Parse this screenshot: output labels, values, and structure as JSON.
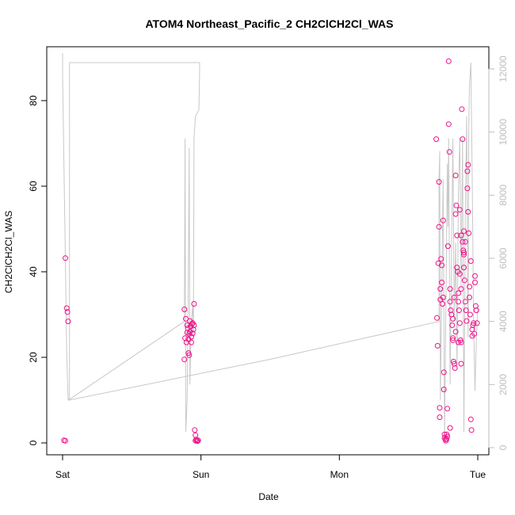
{
  "chart_data": {
    "type": "scatter",
    "title": "ATOM4 Northeast_Pacific_2 CH2ClCH2Cl_WAS",
    "xlabel": "Date",
    "ylabel": "CH2ClCH2Cl_WAS",
    "x_ticks": [
      "Sat",
      "Sun",
      "Mon",
      "Tue"
    ],
    "x_range_days": [
      0,
      3.06
    ],
    "ylim": [
      0,
      90
    ],
    "y_ticks": [
      0,
      20,
      40,
      60,
      80
    ],
    "y2lim": [
      0,
      12500
    ],
    "y2_ticks": [
      0,
      2000,
      4000,
      6000,
      8000,
      10000,
      12000
    ],
    "colors": {
      "points": "#ee1188",
      "secondary_line": "#c8c8c8",
      "axis": "#000000",
      "right_axis": "#bdbdbd"
    },
    "series": [
      {
        "points": [
          [
            0.02,
            43.2
          ],
          [
            0.03,
            31.5
          ],
          [
            0.035,
            30.6
          ],
          [
            0.04,
            28.4
          ],
          [
            0.01,
            0.6
          ],
          [
            0.02,
            0.5
          ],
          [
            0.88,
            31.2
          ],
          [
            0.89,
            29.0
          ],
          [
            0.885,
            24.5
          ],
          [
            0.88,
            19.5
          ],
          [
            0.895,
            23.5
          ],
          [
            0.9,
            27.5
          ],
          [
            0.9,
            25.8
          ],
          [
            0.905,
            26.8
          ],
          [
            0.91,
            24.2
          ],
          [
            0.91,
            21.0
          ],
          [
            0.915,
            20.5
          ],
          [
            0.915,
            25.5
          ],
          [
            0.92,
            28.5
          ],
          [
            0.92,
            26.0
          ],
          [
            0.925,
            27.2
          ],
          [
            0.93,
            24.8
          ],
          [
            0.93,
            23.5
          ],
          [
            0.935,
            27.8
          ],
          [
            0.94,
            25.6
          ],
          [
            0.94,
            28.0
          ],
          [
            0.945,
            26.5
          ],
          [
            0.95,
            27.5
          ],
          [
            0.95,
            32.5
          ],
          [
            0.955,
            3.0
          ],
          [
            0.96,
            1.8
          ],
          [
            0.965,
            0.8
          ],
          [
            0.97,
            0.5
          ],
          [
            0.975,
            0.4
          ],
          [
            0.98,
            0.6
          ],
          [
            0.96,
            0.5
          ],
          [
            2.7,
            71.0
          ],
          [
            2.705,
            29.2
          ],
          [
            2.71,
            22.7
          ],
          [
            2.715,
            42.0
          ],
          [
            2.72,
            61.0
          ],
          [
            2.72,
            50.5
          ],
          [
            2.725,
            8.2
          ],
          [
            2.725,
            6.0
          ],
          [
            2.73,
            36.0
          ],
          [
            2.73,
            33.5
          ],
          [
            2.735,
            43.0
          ],
          [
            2.74,
            41.5
          ],
          [
            2.74,
            37.5
          ],
          [
            2.745,
            32.5
          ],
          [
            2.75,
            34.0
          ],
          [
            2.75,
            52.0
          ],
          [
            2.755,
            16.5
          ],
          [
            2.755,
            12.5
          ],
          [
            2.76,
            2.0
          ],
          [
            2.76,
            1.2
          ],
          [
            2.765,
            0.8
          ],
          [
            2.77,
            0.5
          ],
          [
            2.775,
            0.9
          ],
          [
            2.78,
            1.5
          ],
          [
            2.78,
            8.0
          ],
          [
            2.785,
            46.0
          ],
          [
            2.79,
            89.2
          ],
          [
            2.79,
            74.5
          ],
          [
            2.795,
            68.0
          ],
          [
            2.8,
            36.0
          ],
          [
            2.8,
            33.0
          ],
          [
            2.805,
            31.0
          ],
          [
            2.81,
            30.0
          ],
          [
            2.815,
            27.5
          ],
          [
            2.82,
            29.0
          ],
          [
            2.82,
            24.5
          ],
          [
            2.825,
            19.0
          ],
          [
            2.83,
            18.5
          ],
          [
            2.835,
            17.5
          ],
          [
            2.84,
            53.5
          ],
          [
            2.84,
            62.5
          ],
          [
            2.845,
            55.5
          ],
          [
            2.85,
            48.5
          ],
          [
            2.85,
            41.0
          ],
          [
            2.855,
            40.0
          ],
          [
            2.86,
            35.0
          ],
          [
            2.86,
            33.0
          ],
          [
            2.865,
            31.0
          ],
          [
            2.87,
            28.0
          ],
          [
            2.875,
            24.0
          ],
          [
            2.88,
            23.5
          ],
          [
            2.88,
            18.5
          ],
          [
            2.885,
            78.0
          ],
          [
            2.89,
            71.0
          ],
          [
            2.89,
            47.0
          ],
          [
            2.895,
            45.0
          ],
          [
            2.9,
            44.0
          ],
          [
            2.9,
            41.0
          ],
          [
            2.905,
            38.0
          ],
          [
            2.91,
            33.0
          ],
          [
            2.915,
            31.0
          ],
          [
            2.92,
            28.5
          ],
          [
            2.925,
            59.5
          ],
          [
            2.925,
            63.5
          ],
          [
            2.93,
            65.0
          ],
          [
            2.93,
            54.0
          ],
          [
            2.935,
            49.0
          ],
          [
            2.94,
            36.5
          ],
          [
            2.94,
            34.0
          ],
          [
            2.945,
            30.0
          ],
          [
            2.95,
            42.5
          ],
          [
            2.95,
            5.5
          ],
          [
            2.955,
            3.0
          ],
          [
            2.96,
            25.0
          ],
          [
            2.96,
            26.5
          ],
          [
            2.965,
            27.5
          ],
          [
            2.97,
            28.0
          ],
          [
            2.975,
            25.5
          ],
          [
            2.98,
            37.5
          ],
          [
            2.98,
            39.0
          ],
          [
            2.985,
            32.0
          ],
          [
            2.99,
            31.0
          ],
          [
            2.995,
            28.0
          ],
          [
            2.87,
            39.5
          ],
          [
            2.86,
            23.5
          ],
          [
            2.8,
            3.5
          ],
          [
            2.775,
            2.0
          ],
          [
            2.82,
            24.0
          ],
          [
            2.83,
            34.0
          ],
          [
            2.84,
            26.0
          ],
          [
            2.87,
            54.5
          ],
          [
            2.88,
            48.5
          ],
          [
            2.9,
            49.5
          ],
          [
            2.91,
            47.0
          ],
          [
            2.88,
            36.0
          ],
          [
            2.9,
            44.5
          ]
        ]
      },
      {
        "axis": "right",
        "points": [
          [
            0.0,
            12500
          ],
          [
            0.0,
            11800
          ],
          [
            0.02,
            6000
          ],
          [
            0.03,
            3000
          ],
          [
            0.04,
            1500
          ],
          [
            0.05,
            1600
          ],
          [
            0.05,
            12200
          ],
          [
            0.4,
            12200
          ],
          [
            0.8,
            12200
          ],
          [
            0.99,
            12200
          ],
          [
            0.99,
            11800
          ],
          [
            0.985,
            10700
          ],
          [
            0.96,
            10500
          ],
          [
            0.95,
            9800
          ],
          [
            0.945,
            3500
          ],
          [
            0.94,
            4500
          ],
          [
            0.93,
            4000
          ],
          [
            0.92,
            2000
          ],
          [
            0.915,
            9500
          ],
          [
            0.91,
            6000
          ],
          [
            0.905,
            3500
          ],
          [
            0.9,
            1500
          ],
          [
            0.89,
            500
          ],
          [
            0.885,
            9800
          ],
          [
            0.88,
            4000
          ],
          [
            0.04,
            1500
          ],
          [
            1.5,
            2800
          ],
          [
            2.72,
            4000
          ],
          [
            2.72,
            8500
          ],
          [
            2.725,
            9400
          ],
          [
            2.73,
            1500
          ],
          [
            2.74,
            5000
          ],
          [
            2.75,
            8500
          ],
          [
            2.76,
            400
          ],
          [
            2.77,
            4500
          ],
          [
            2.78,
            9000
          ],
          [
            2.785,
            7000
          ],
          [
            2.79,
            9800
          ],
          [
            2.8,
            2000
          ],
          [
            2.81,
            6000
          ],
          [
            2.82,
            9800
          ],
          [
            2.83,
            4000
          ],
          [
            2.84,
            6500
          ],
          [
            2.85,
            2500
          ],
          [
            2.86,
            8000
          ],
          [
            2.87,
            9800
          ],
          [
            2.88,
            5000
          ],
          [
            2.89,
            9800
          ],
          [
            2.9,
            500
          ],
          [
            2.91,
            7500
          ],
          [
            2.92,
            10500
          ],
          [
            2.93,
            3500
          ],
          [
            2.935,
            10000
          ],
          [
            2.94,
            11500
          ],
          [
            2.95,
            12200
          ],
          [
            2.96,
            8500
          ],
          [
            2.97,
            4000
          ],
          [
            2.98,
            1800
          ],
          [
            2.99,
            3500
          ],
          [
            3.0,
            4500
          ]
        ]
      }
    ]
  }
}
